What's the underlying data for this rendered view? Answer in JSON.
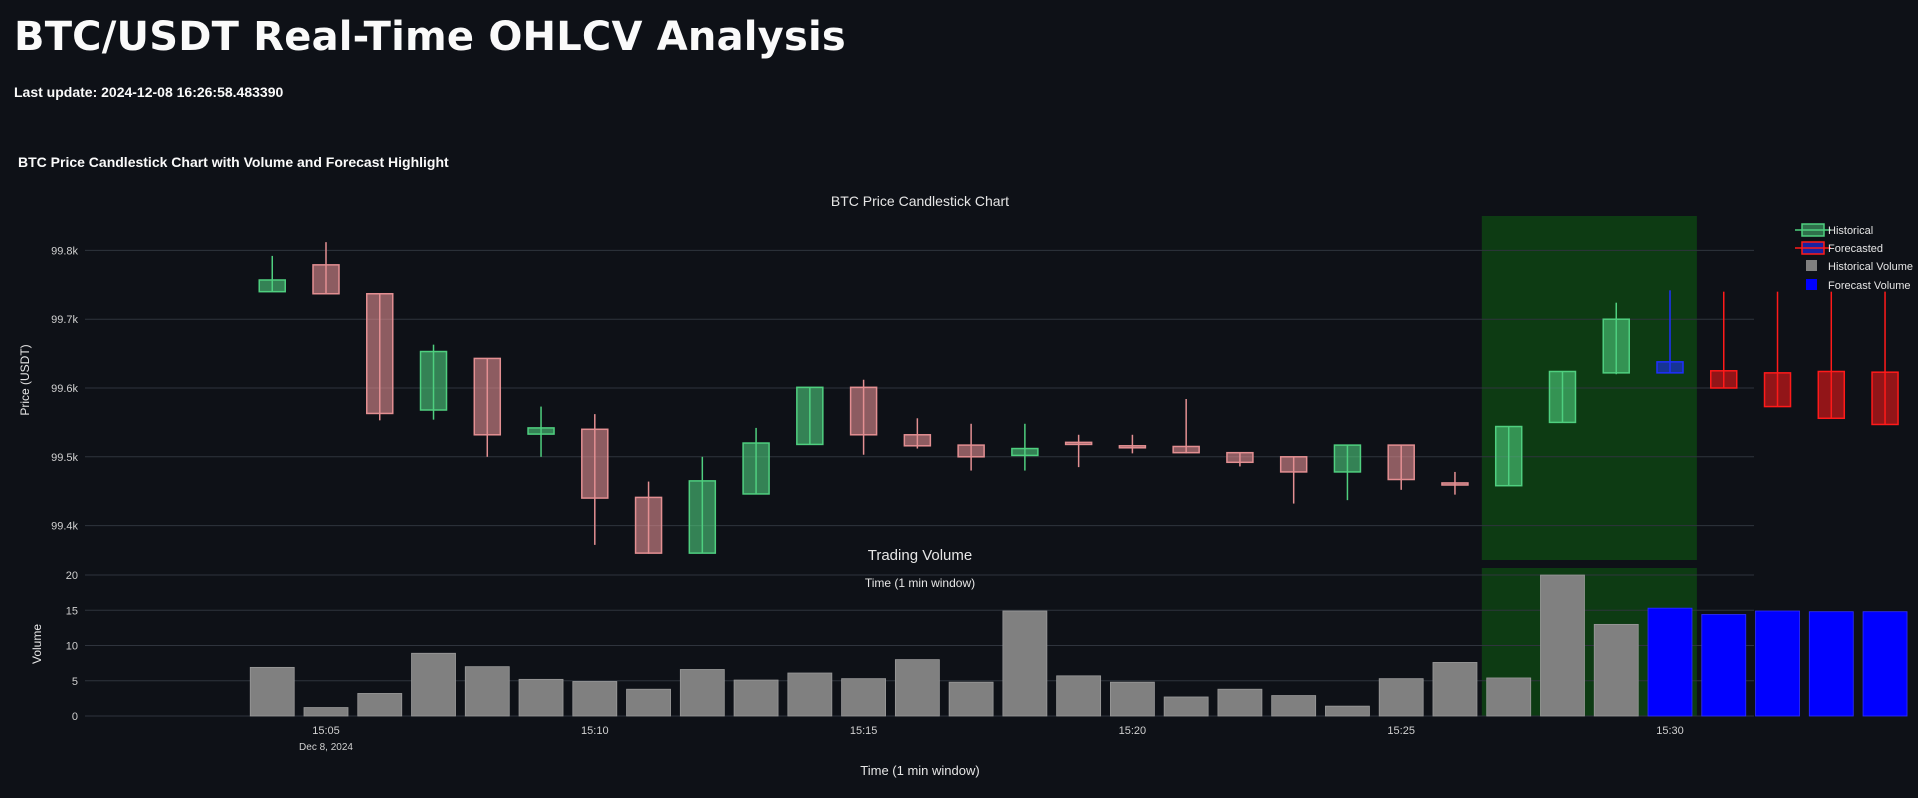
{
  "page": {
    "title": "BTC/USDT Real-Time OHLCV Analysis",
    "last_update": "Last update: 2024-12-08 16:26:58.483390",
    "section_title": "BTC Price Candlestick Chart with Volume and Forecast Highlight"
  },
  "colors": {
    "background": "#0e1117",
    "historical_up": "#4fcf7f",
    "historical_down": "#e38f92",
    "forecast_up": "#1f2fff",
    "forecast_down": "#ff1a1a",
    "historical_volume": "#808080",
    "forecast_volume": "#0000ff",
    "forecast_region": "#0d3b13",
    "gridline": "#2f343d"
  },
  "chart_data": [
    {
      "type": "candlestick",
      "title": "BTC Price Candlestick Chart",
      "ylabel": "Price (USDT)",
      "ylim": [
        99350,
        99850
      ],
      "yticks": [
        99400,
        99500,
        99600,
        99700,
        99800
      ],
      "ytick_labels": [
        "99.4k",
        "99.5k",
        "99.6k",
        "99.7k",
        "99.8k"
      ],
      "forecast_region": {
        "x_start": "15:26:30",
        "x_end": "15:30:30"
      },
      "legend_placement": "top-right",
      "legend": [
        {
          "label": "Historical",
          "kind": "candle-up"
        },
        {
          "label": "Forecasted",
          "kind": "candle-forecast"
        },
        {
          "label": "Historical Volume",
          "kind": "square-gray"
        },
        {
          "label": "Forecast Volume",
          "kind": "square-blue"
        }
      ],
      "series": [
        {
          "name": "Historical",
          "candles": [
            {
              "t": "15:04",
              "open": 99740,
              "high": 99792,
              "low": 99740,
              "close": 99757
            },
            {
              "t": "15:05",
              "open": 99779,
              "high": 99812,
              "low": 99737,
              "close": 99737
            },
            {
              "t": "15:06",
              "open": 99737,
              "high": 99737,
              "low": 99553,
              "close": 99563
            },
            {
              "t": "15:07",
              "open": 99568,
              "high": 99663,
              "low": 99554,
              "close": 99653
            },
            {
              "t": "15:08",
              "open": 99643,
              "high": 99643,
              "low": 99500,
              "close": 99532
            },
            {
              "t": "15:09",
              "open": 99533,
              "high": 99573,
              "low": 99500,
              "close": 99542
            },
            {
              "t": "15:10",
              "open": 99540,
              "high": 99562,
              "low": 99372,
              "close": 99440
            },
            {
              "t": "15:11",
              "open": 99441,
              "high": 99464,
              "low": 99359,
              "close": 99360
            },
            {
              "t": "15:12",
              "open": 99360,
              "high": 99500,
              "low": 99360,
              "close": 99465
            },
            {
              "t": "15:13",
              "open": 99446,
              "high": 99542,
              "low": 99446,
              "close": 99520
            },
            {
              "t": "15:14",
              "open": 99518,
              "high": 99601,
              "low": 99518,
              "close": 99601
            },
            {
              "t": "15:15",
              "open": 99601,
              "high": 99612,
              "low": 99503,
              "close": 99532
            },
            {
              "t": "15:16",
              "open": 99532,
              "high": 99556,
              "low": 99512,
              "close": 99516
            },
            {
              "t": "15:17",
              "open": 99517,
              "high": 99548,
              "low": 99480,
              "close": 99500
            },
            {
              "t": "15:18",
              "open": 99502,
              "high": 99548,
              "low": 99480,
              "close": 99512
            },
            {
              "t": "15:19",
              "open": 99521,
              "high": 99532,
              "low": 99485,
              "close": 99518
            },
            {
              "t": "15:20",
              "open": 99516,
              "high": 99532,
              "low": 99505,
              "close": 99515
            },
            {
              "t": "15:21",
              "open": 99515,
              "high": 99584,
              "low": 99505,
              "close": 99506
            },
            {
              "t": "15:22",
              "open": 99506,
              "high": 99506,
              "low": 99486,
              "close": 99492
            },
            {
              "t": "15:23",
              "open": 99500,
              "high": 99500,
              "low": 99432,
              "close": 99478
            },
            {
              "t": "15:24",
              "open": 99478,
              "high": 99517,
              "low": 99437,
              "close": 99517
            },
            {
              "t": "15:25",
              "open": 99517,
              "high": 99517,
              "low": 99452,
              "close": 99467
            },
            {
              "t": "15:26",
              "open": 99462,
              "high": 99478,
              "low": 99445,
              "close": 99459
            },
            {
              "t": "15:27",
              "open": 99458,
              "high": 99544,
              "low": 99458,
              "close": 99544
            },
            {
              "t": "15:28",
              "open": 99550,
              "high": 99624,
              "low": 99550,
              "close": 99624
            },
            {
              "t": "15:29",
              "open": 99622,
              "high": 99724,
              "low": 99620,
              "close": 99700
            }
          ]
        },
        {
          "name": "Forecasted",
          "candles": [
            {
              "t": "15:30",
              "open": 99622,
              "high": 99742,
              "low": 99622,
              "close": 99638
            },
            {
              "t": "15:31",
              "open": 99625,
              "high": 99740,
              "low": 99600,
              "close": 99600
            },
            {
              "t": "15:32",
              "open": 99622,
              "high": 99740,
              "low": 99573,
              "close": 99573
            },
            {
              "t": "15:33",
              "open": 99624,
              "high": 99740,
              "low": 99556,
              "close": 99556
            },
            {
              "t": "15:34",
              "open": 99623,
              "high": 99740,
              "low": 99547,
              "close": 99547
            }
          ]
        }
      ]
    },
    {
      "type": "bar",
      "title": "Trading Volume",
      "subtitle": "Time (1 min window)",
      "xlabel": "Time (1 min window)",
      "ylabel": "Volume",
      "ylim": [
        0,
        21
      ],
      "yticks": [
        0,
        5,
        10,
        15,
        20
      ],
      "xticks": [
        {
          "label": "15:05",
          "sublabel": "Dec 8, 2024",
          "at": "15:05"
        },
        {
          "label": "15:10",
          "sublabel": "",
          "at": "15:10"
        },
        {
          "label": "15:15",
          "sublabel": "",
          "at": "15:15"
        },
        {
          "label": "15:20",
          "sublabel": "",
          "at": "15:20"
        },
        {
          "label": "15:25",
          "sublabel": "",
          "at": "15:25"
        },
        {
          "label": "15:30",
          "sublabel": "",
          "at": "15:30"
        }
      ],
      "series": [
        {
          "name": "Historical Volume",
          "x": [
            "15:04",
            "15:05",
            "15:06",
            "15:07",
            "15:08",
            "15:09",
            "15:10",
            "15:11",
            "15:12",
            "15:13",
            "15:14",
            "15:15",
            "15:16",
            "15:17",
            "15:18",
            "15:19",
            "15:20",
            "15:21",
            "15:22",
            "15:23",
            "15:24",
            "15:25",
            "15:26",
            "15:27",
            "15:28",
            "15:29"
          ],
          "values": [
            6.9,
            1.2,
            3.2,
            8.9,
            7.0,
            5.2,
            4.9,
            3.8,
            6.6,
            5.1,
            6.1,
            5.3,
            8.0,
            4.8,
            14.9,
            5.7,
            4.8,
            2.7,
            3.8,
            2.9,
            1.4,
            5.3,
            7.6,
            5.4,
            20.0,
            13.0
          ]
        },
        {
          "name": "Forecast Volume",
          "x": [
            "15:30",
            "15:31",
            "15:32",
            "15:33",
            "15:34"
          ],
          "values": [
            15.3,
            14.4,
            14.9,
            14.8,
            14.8
          ]
        }
      ]
    }
  ]
}
